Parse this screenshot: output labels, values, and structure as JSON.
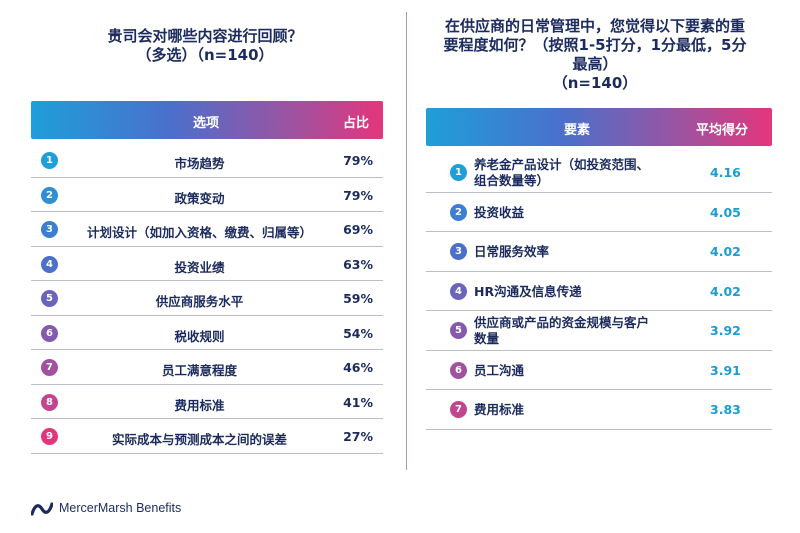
{
  "left_panel": {
    "title_line1": "贵司会对哪些内容进行回顾？",
    "title_line2": "（多选）（n=140）",
    "header_option": "选项",
    "header_share": "占比",
    "rows": [
      {
        "num": "1",
        "label": "市场趋势",
        "value": "79%",
        "color": "#1e9fd9"
      },
      {
        "num": "2",
        "label": "政策变动",
        "value": "79%",
        "color": "#2f8fd6"
      },
      {
        "num": "3",
        "label": "计划设计（如加入资格、缴费、归属等）",
        "value": "69%",
        "color": "#3c7ed2"
      },
      {
        "num": "4",
        "label": "投资业绩",
        "value": "63%",
        "color": "#4b6fcb"
      },
      {
        "num": "5",
        "label": "供应商服务水平",
        "value": "59%",
        "color": "#6a64bd"
      },
      {
        "num": "6",
        "label": "税收规则",
        "value": "54%",
        "color": "#8559ad"
      },
      {
        "num": "7",
        "label": "员工满意程度",
        "value": "46%",
        "color": "#a0529f"
      },
      {
        "num": "8",
        "label": "费用标准",
        "value": "41%",
        "color": "#c2468e"
      },
      {
        "num": "9",
        "label": "实际成本与预测成本之间的误差",
        "value": "27%",
        "color": "#e4357c"
      }
    ]
  },
  "right_panel": {
    "title_line1": "在供应商的日常管理中，您觉得以下要素的重",
    "title_line2": "要程度如何？（按照1-5打分，1分最低，5分",
    "title_line3": "最高）",
    "title_line4": "（n=140）",
    "header_factor": "要素",
    "header_score": "平均得分",
    "rows": [
      {
        "num": "1",
        "label_line1": "养老金产品设计（如投资范围、",
        "label_line2": "组合数量等）",
        "value": "4.16",
        "color": "#1e9fd9"
      },
      {
        "num": "2",
        "label_line1": "投资收益",
        "label_line2": "",
        "value": "4.05",
        "color": "#3c7ed2"
      },
      {
        "num": "3",
        "label_line1": "日常服务效率",
        "label_line2": "",
        "value": "4.02",
        "color": "#4b6fcb"
      },
      {
        "num": "4",
        "label_line1": "HR沟通及信息传递",
        "label_line2": "",
        "value": "4.02",
        "color": "#6a64bd"
      },
      {
        "num": "5",
        "label_line1": "供应商或产品的资金规模与客户",
        "label_line2": "数量",
        "value": "3.92",
        "color": "#8559ad"
      },
      {
        "num": "6",
        "label_line1": "员工沟通",
        "label_line2": "",
        "value": "3.91",
        "color": "#a0529f"
      },
      {
        "num": "7",
        "label_line1": "费用标准",
        "label_line2": "",
        "value": "3.83",
        "color": "#c2468e"
      }
    ]
  },
  "footer": {
    "logo_text": "MercerMarsh Benefits",
    "logo_icon": "mercer-marsh-logo-icon"
  }
}
